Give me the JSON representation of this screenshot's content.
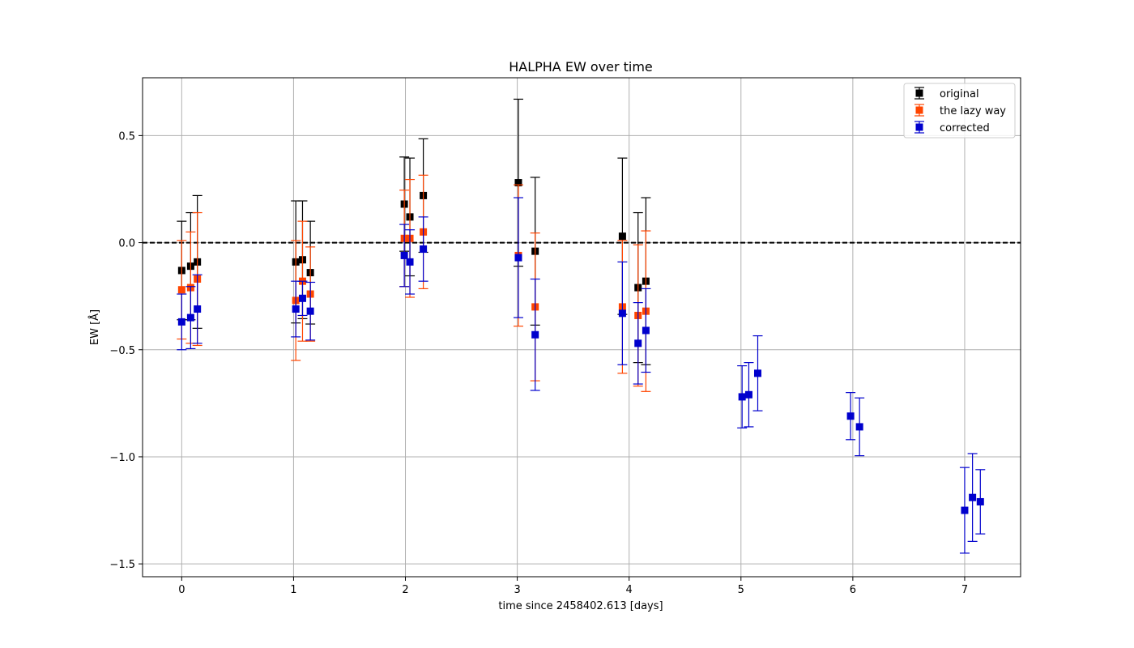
{
  "chart_data": {
    "type": "scatter",
    "title": "HALPHA EW over time",
    "xlabel": "time since 2458402.613 [days]",
    "ylabel": "EW [Å]",
    "xlim": [
      -0.35,
      7.5
    ],
    "ylim": [
      -1.56,
      0.77
    ],
    "xticks": [
      0,
      1,
      2,
      3,
      4,
      5,
      6,
      7
    ],
    "xtick_labels": [
      "0",
      "1",
      "2",
      "3",
      "4",
      "5",
      "6",
      "7"
    ],
    "yticks": [
      -1.5,
      -1.0,
      -0.5,
      0.0,
      0.5
    ],
    "ytick_labels": [
      "−1.5",
      "−1.0",
      "−0.5",
      "0.0",
      "0.5"
    ],
    "grid": true,
    "reference_line": {
      "y": 0.0,
      "style": "dashed",
      "color": "#000000"
    },
    "legend_position": "top-right",
    "marker": "square",
    "series": [
      {
        "name": "original",
        "color": "#000000",
        "points": [
          {
            "x": 0.0,
            "y": -0.13,
            "err": 0.23
          },
          {
            "x": 0.08,
            "y": -0.11,
            "err": 0.25
          },
          {
            "x": 0.14,
            "y": -0.09,
            "err": 0.31
          },
          {
            "x": 1.02,
            "y": -0.09,
            "err": 0.285
          },
          {
            "x": 1.08,
            "y": -0.08,
            "err": 0.275
          },
          {
            "x": 1.15,
            "y": -0.14,
            "err": 0.24
          },
          {
            "x": 1.99,
            "y": 0.18,
            "err": 0.22
          },
          {
            "x": 2.04,
            "y": 0.12,
            "err": 0.275
          },
          {
            "x": 2.16,
            "y": 0.22,
            "err": 0.265
          },
          {
            "x": 3.01,
            "y": 0.28,
            "err": 0.39
          },
          {
            "x": 3.16,
            "y": -0.04,
            "err": 0.345
          },
          {
            "x": 3.94,
            "y": 0.03,
            "err": 0.365
          },
          {
            "x": 4.08,
            "y": -0.21,
            "err": 0.35
          },
          {
            "x": 4.15,
            "y": -0.18,
            "err": 0.39
          }
        ]
      },
      {
        "name": "the lazy way",
        "color": "#ff4500",
        "points": [
          {
            "x": 0.0,
            "y": -0.22,
            "err": 0.23
          },
          {
            "x": 0.08,
            "y": -0.21,
            "err": 0.26
          },
          {
            "x": 0.14,
            "y": -0.17,
            "err": 0.31
          },
          {
            "x": 1.02,
            "y": -0.27,
            "err": 0.28
          },
          {
            "x": 1.08,
            "y": -0.18,
            "err": 0.28
          },
          {
            "x": 1.15,
            "y": -0.24,
            "err": 0.22
          },
          {
            "x": 1.99,
            "y": 0.02,
            "err": 0.225
          },
          {
            "x": 2.04,
            "y": 0.02,
            "err": 0.275
          },
          {
            "x": 2.16,
            "y": 0.05,
            "err": 0.265
          },
          {
            "x": 3.01,
            "y": -0.06,
            "err": 0.33
          },
          {
            "x": 3.16,
            "y": -0.3,
            "err": 0.345
          },
          {
            "x": 3.94,
            "y": -0.3,
            "err": 0.31
          },
          {
            "x": 4.08,
            "y": -0.34,
            "err": 0.33
          },
          {
            "x": 4.15,
            "y": -0.32,
            "err": 0.375
          }
        ]
      },
      {
        "name": "corrected",
        "color": "#0000cd",
        "points": [
          {
            "x": 0.0,
            "y": -0.37,
            "err": 0.13
          },
          {
            "x": 0.08,
            "y": -0.35,
            "err": 0.145
          },
          {
            "x": 0.14,
            "y": -0.31,
            "err": 0.16
          },
          {
            "x": 1.02,
            "y": -0.31,
            "err": 0.13
          },
          {
            "x": 1.08,
            "y": -0.26,
            "err": 0.08
          },
          {
            "x": 1.15,
            "y": -0.32,
            "err": 0.135
          },
          {
            "x": 1.99,
            "y": -0.06,
            "err": 0.145
          },
          {
            "x": 2.04,
            "y": -0.09,
            "err": 0.15
          },
          {
            "x": 2.16,
            "y": -0.03,
            "err": 0.15
          },
          {
            "x": 3.01,
            "y": -0.07,
            "err": 0.28
          },
          {
            "x": 3.16,
            "y": -0.43,
            "err": 0.26
          },
          {
            "x": 3.94,
            "y": -0.33,
            "err": 0.24
          },
          {
            "x": 4.08,
            "y": -0.47,
            "err": 0.19
          },
          {
            "x": 4.15,
            "y": -0.41,
            "err": 0.195
          },
          {
            "x": 5.01,
            "y": -0.72,
            "err": 0.145
          },
          {
            "x": 5.07,
            "y": -0.71,
            "err": 0.15
          },
          {
            "x": 5.15,
            "y": -0.61,
            "err": 0.175
          },
          {
            "x": 5.98,
            "y": -0.81,
            "err": 0.11
          },
          {
            "x": 6.06,
            "y": -0.86,
            "err": 0.135
          },
          {
            "x": 7.0,
            "y": -1.25,
            "err": 0.2
          },
          {
            "x": 7.07,
            "y": -1.19,
            "err": 0.205
          },
          {
            "x": 7.14,
            "y": -1.21,
            "err": 0.15
          }
        ]
      }
    ]
  }
}
